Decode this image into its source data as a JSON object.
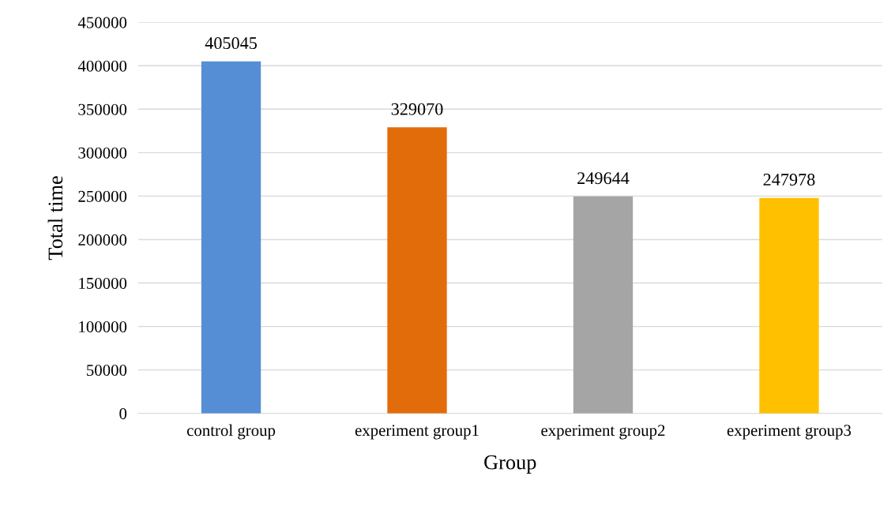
{
  "chart_data": {
    "type": "bar",
    "xlabel": "Group",
    "ylabel": "Total time",
    "categories": [
      "control group",
      "experiment group1",
      "experiment group2",
      "experiment group3"
    ],
    "values": [
      405045,
      329070,
      249644,
      247978
    ],
    "colors": [
      "#558ed5",
      "#e36c0a",
      "#a5a5a5",
      "#ffc000"
    ],
    "ylim": [
      0,
      450000
    ],
    "yticks": [
      0,
      50000,
      100000,
      150000,
      200000,
      250000,
      300000,
      350000,
      400000,
      450000
    ],
    "grid": "y",
    "data_labels": true,
    "legend": false
  }
}
